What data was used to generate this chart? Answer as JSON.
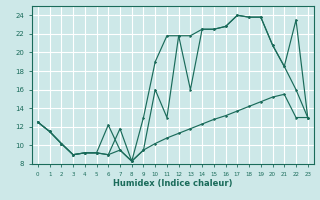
{
  "background_color": "#cde8e8",
  "grid_color": "#ffffff",
  "line_color": "#1a6b5a",
  "xlabel": "Humidex (Indice chaleur)",
  "xlim": [
    -0.5,
    23.5
  ],
  "ylim": [
    8,
    25
  ],
  "yticks": [
    8,
    10,
    12,
    14,
    16,
    18,
    20,
    22,
    24
  ],
  "xticks": [
    0,
    1,
    2,
    3,
    4,
    5,
    6,
    7,
    8,
    9,
    10,
    11,
    12,
    13,
    14,
    15,
    16,
    17,
    18,
    19,
    20,
    21,
    22,
    23
  ],
  "line1_x": [
    0,
    1,
    2,
    3,
    4,
    5,
    6,
    7,
    8,
    9,
    10,
    11,
    12,
    13,
    14,
    15,
    16,
    17,
    18,
    19,
    20,
    21,
    22,
    23
  ],
  "line1_y": [
    12.5,
    11.5,
    10.2,
    9.0,
    9.2,
    9.2,
    9.0,
    9.5,
    8.3,
    9.5,
    10.2,
    10.8,
    11.3,
    11.8,
    12.3,
    12.8,
    13.2,
    13.7,
    14.2,
    14.7,
    15.2,
    15.5,
    13.0,
    13.0
  ],
  "line2_x": [
    0,
    1,
    2,
    3,
    4,
    5,
    6,
    7,
    8,
    9,
    10,
    11,
    12,
    13,
    14,
    15,
    16,
    17,
    18,
    19,
    20,
    21,
    22,
    23
  ],
  "line2_y": [
    12.5,
    11.5,
    10.2,
    9.0,
    9.2,
    9.2,
    9.0,
    11.8,
    8.3,
    13.0,
    19.0,
    21.8,
    21.8,
    16.0,
    22.5,
    22.5,
    22.8,
    24.0,
    23.8,
    23.8,
    20.8,
    18.5,
    16.0,
    13.0
  ],
  "line3_x": [
    0,
    1,
    2,
    3,
    4,
    5,
    6,
    7,
    8,
    9,
    10,
    11,
    12,
    13,
    14,
    15,
    16,
    17,
    18,
    19,
    20,
    21,
    22,
    23
  ],
  "line3_y": [
    12.5,
    11.5,
    10.2,
    9.0,
    9.2,
    9.2,
    12.2,
    9.5,
    8.3,
    9.5,
    16.0,
    13.0,
    21.8,
    21.8,
    22.5,
    22.5,
    22.8,
    24.0,
    23.8,
    23.8,
    20.8,
    18.5,
    23.5,
    13.0
  ]
}
